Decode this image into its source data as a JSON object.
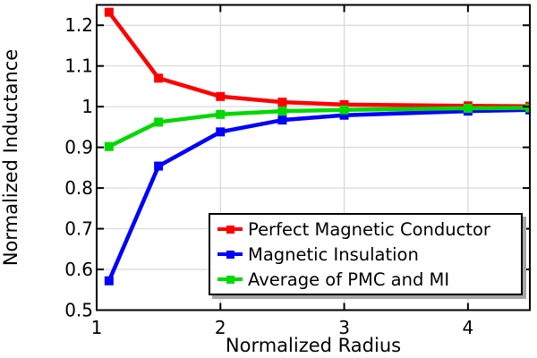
{
  "chart_data": {
    "type": "line",
    "title": "",
    "xlabel": "Normalized Radius",
    "ylabel": "Normalized Inductance",
    "xlim": [
      1,
      4.5
    ],
    "ylim": [
      0.5,
      1.25
    ],
    "x_ticks": [
      1,
      2,
      3,
      4
    ],
    "x_tick_labels": [
      "1",
      "2",
      "3",
      "4"
    ],
    "y_ticks": [
      0.5,
      0.6,
      0.7,
      0.8,
      0.9,
      1,
      1.1,
      1.2
    ],
    "y_tick_labels": [
      "0.5",
      "0.6",
      "0.7",
      "0.8",
      "0.9",
      "1",
      "1.1",
      "1.2"
    ],
    "grid": true,
    "legend_position": "lower right",
    "marker": "square",
    "x": [
      1.1,
      1.5,
      2,
      2.5,
      3,
      4,
      4.5
    ],
    "series": [
      {
        "name": "Perfect Magnetic Conductor",
        "color": "#ff0000",
        "marker": "square",
        "values": [
          1.232,
          1.07,
          1.025,
          1.011,
          1.005,
          1.002,
          1.001
        ]
      },
      {
        "name": "Magnetic Insulation",
        "color": "#0000ff",
        "marker": "square",
        "values": [
          0.572,
          0.854,
          0.938,
          0.967,
          0.979,
          0.989,
          0.992
        ]
      },
      {
        "name": "Average of PMC and MI",
        "color": "#00d900",
        "marker": "square",
        "values": [
          0.902,
          0.962,
          0.981,
          0.989,
          0.992,
          0.996,
          0.997
        ]
      }
    ],
    "colors": {
      "background": "#ffffff",
      "grid": "#d8d8d8",
      "axis": "#000000",
      "tick_label": "#000000",
      "legend_border": "#000000",
      "legend_shadow": "#a6a6a6"
    }
  }
}
